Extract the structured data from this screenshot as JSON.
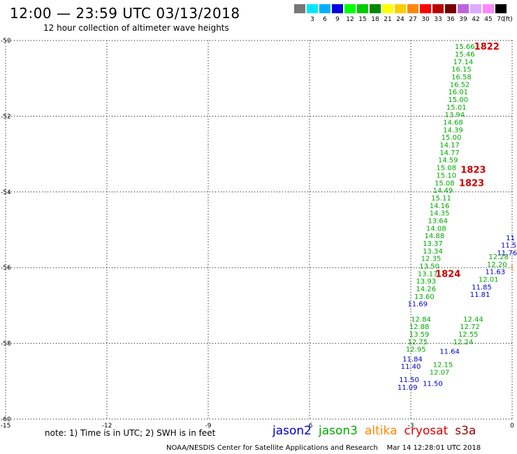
{
  "header": {
    "title": "12:00 — 23:59 UTC 03/13/2018",
    "subtitle": "12 hour collection of altimeter wave heights"
  },
  "colorbar": {
    "unit": "(ft)",
    "colors": [
      "#777777",
      "#00e8ff",
      "#00b0ff",
      "#0000e0",
      "#00ff00",
      "#00cc00",
      "#008800",
      "#ffff00",
      "#ffcc00",
      "#ff8800",
      "#ff0000",
      "#bb0000",
      "#770000",
      "#bb66dd",
      "#ddaaff",
      "#ff88ff",
      "#000000"
    ],
    "labels": [
      "3",
      "6",
      "9",
      "12",
      "15",
      "18",
      "21",
      "24",
      "27",
      "30",
      "33",
      "36",
      "39",
      "42",
      "45",
      "70"
    ]
  },
  "note": "note: 1) Time is in UTC; 2) SWH is in feet",
  "legend": [
    {
      "name": "jason2",
      "color": "#0000cc"
    },
    {
      "name": "jason3",
      "color": "#00aa00"
    },
    {
      "name": "altika",
      "color": "#ff8800"
    },
    {
      "name": "cryosat",
      "color": "#dd0000"
    },
    {
      "name": "s3a",
      "color": "#990000"
    }
  ],
  "footer": "NOAA/NESDIS Center for Satellite Applications and Research    Mar 14 12:28:01 UTC 2018",
  "chart_data": {
    "type": "scatter",
    "title": "12:00 — 23:59 UTC 03/13/2018",
    "subtitle": "12 hour collection of altimeter wave heights",
    "xlim": [
      -15,
      0
    ],
    "ylim": [
      -60,
      -50
    ],
    "xticks": [
      -15,
      -12,
      -9,
      -6,
      -3,
      0
    ],
    "xtick_labels": [
      "-15",
      "-12",
      "-9",
      "-6",
      "-3",
      "0"
    ],
    "yticks": [
      -50,
      -52,
      -54,
      -56,
      -58,
      -60
    ],
    "ytick_labels": [
      "-50",
      "-52",
      "-54",
      "-56",
      "-58",
      "-60"
    ],
    "grid": true,
    "series": [
      {
        "name": "jason3",
        "color": "#00aa00",
        "points": [
          {
            "x": -1.4,
            "y": -50.15,
            "label": "15.66"
          },
          {
            "x": -1.4,
            "y": -50.35,
            "label": "15.46"
          },
          {
            "x": -1.45,
            "y": -50.55,
            "label": "17.14"
          },
          {
            "x": -1.5,
            "y": -50.75,
            "label": "16.15"
          },
          {
            "x": -1.5,
            "y": -50.95,
            "label": "16.58"
          },
          {
            "x": -1.55,
            "y": -51.15,
            "label": "16.52"
          },
          {
            "x": -1.6,
            "y": -51.35,
            "label": "16.01"
          },
          {
            "x": -1.6,
            "y": -51.55,
            "label": "15.00"
          },
          {
            "x": -1.65,
            "y": -51.75,
            "label": "15.01"
          },
          {
            "x": -1.7,
            "y": -51.95,
            "label": "13.94"
          },
          {
            "x": -1.75,
            "y": -52.15,
            "label": "14.68"
          },
          {
            "x": -1.75,
            "y": -52.35,
            "label": "14.39"
          },
          {
            "x": -1.8,
            "y": -52.55,
            "label": "15.00"
          },
          {
            "x": -1.85,
            "y": -52.75,
            "label": "14.17"
          },
          {
            "x": -1.85,
            "y": -52.95,
            "label": "14.77"
          },
          {
            "x": -1.9,
            "y": -53.15,
            "label": "14.59"
          },
          {
            "x": -1.95,
            "y": -53.35,
            "label": "15.08"
          },
          {
            "x": -1.95,
            "y": -53.55,
            "label": "15.10"
          },
          {
            "x": -2.0,
            "y": -53.75,
            "label": "15.08"
          },
          {
            "x": -2.05,
            "y": -53.95,
            "label": "14.49"
          },
          {
            "x": -2.1,
            "y": -54.15,
            "label": "15.11"
          },
          {
            "x": -2.15,
            "y": -54.35,
            "label": "14.16"
          },
          {
            "x": -2.15,
            "y": -54.55,
            "label": "14.35"
          },
          {
            "x": -2.2,
            "y": -54.75,
            "label": "13.64"
          },
          {
            "x": -2.25,
            "y": -54.95,
            "label": "14.08"
          },
          {
            "x": -2.3,
            "y": -55.15,
            "label": "14.88"
          },
          {
            "x": -2.35,
            "y": -55.35,
            "label": "13.37"
          },
          {
            "x": -2.35,
            "y": -55.55,
            "label": "13.34"
          },
          {
            "x": -2.4,
            "y": -55.75,
            "label": "12.35"
          },
          {
            "x": -2.45,
            "y": -55.95,
            "label": "13.50"
          },
          {
            "x": -2.5,
            "y": -56.15,
            "label": "13.17"
          },
          {
            "x": -2.55,
            "y": -56.35,
            "label": "13.93"
          },
          {
            "x": -2.55,
            "y": -56.55,
            "label": "14.26"
          },
          {
            "x": -2.6,
            "y": -56.75,
            "label": "13.60"
          },
          {
            "x": -2.7,
            "y": -57.35,
            "label": "12.84"
          },
          {
            "x": -2.75,
            "y": -57.55,
            "label": "12.88"
          },
          {
            "x": -2.75,
            "y": -57.75,
            "label": "13.59"
          },
          {
            "x": -2.8,
            "y": -57.95,
            "label": "12.75"
          },
          {
            "x": -2.85,
            "y": -58.15,
            "label": "12.95"
          },
          {
            "x": -0.4,
            "y": -55.7,
            "label": "12.28"
          },
          {
            "x": -0.45,
            "y": -55.9,
            "label": "12.20"
          },
          {
            "x": -0.7,
            "y": -56.3,
            "label": "12.01"
          },
          {
            "x": -1.15,
            "y": -57.35,
            "label": "12.44"
          },
          {
            "x": -1.25,
            "y": -57.55,
            "label": "12.72"
          },
          {
            "x": -1.3,
            "y": -57.75,
            "label": "12.55"
          },
          {
            "x": -1.45,
            "y": -57.95,
            "label": "12.24"
          },
          {
            "x": -2.05,
            "y": -58.55,
            "label": "12.15"
          },
          {
            "x": -2.15,
            "y": -58.75,
            "label": "12.07"
          }
        ]
      },
      {
        "name": "jason2",
        "color": "#0000cc",
        "points": [
          {
            "x": -0.05,
            "y": -55.2,
            "label": "11"
          },
          {
            "x": -0.1,
            "y": -55.4,
            "label": "11.5"
          },
          {
            "x": -0.15,
            "y": -55.6,
            "label": "11.76"
          },
          {
            "x": -0.5,
            "y": -56.1,
            "label": "11.63"
          },
          {
            "x": -0.9,
            "y": -56.5,
            "label": "11.85"
          },
          {
            "x": -0.95,
            "y": -56.7,
            "label": "11.81"
          },
          {
            "x": -2.8,
            "y": -56.95,
            "label": "11.69"
          },
          {
            "x": -1.85,
            "y": -58.2,
            "label": "11.64"
          },
          {
            "x": -2.95,
            "y": -58.4,
            "label": "11.84"
          },
          {
            "x": -3.0,
            "y": -58.6,
            "label": "11.40"
          },
          {
            "x": -3.05,
            "y": -58.95,
            "label": "11.50"
          },
          {
            "x": -2.35,
            "y": -59.05,
            "label": "11.50"
          },
          {
            "x": -3.1,
            "y": -59.15,
            "label": "11.09"
          }
        ]
      },
      {
        "name": "altika",
        "color": "#ff8800",
        "points": [
          {
            "x": 0.0,
            "y": -56.0,
            "label": "1"
          }
        ]
      },
      {
        "name": "cryosat",
        "color": "#dd0000",
        "points": []
      },
      {
        "name": "s3a",
        "color": "#990000",
        "points": []
      }
    ],
    "annotations": [
      {
        "text": "1822",
        "x": -0.75,
        "y": -50.15,
        "color": "#cc0000"
      },
      {
        "text": "1823",
        "x": -1.15,
        "y": -53.4,
        "color": "#cc0000"
      },
      {
        "text": "1823",
        "x": -1.2,
        "y": -53.75,
        "color": "#cc0000"
      },
      {
        "text": "1824",
        "x": -1.9,
        "y": -56.15,
        "color": "#cc0000"
      }
    ]
  }
}
